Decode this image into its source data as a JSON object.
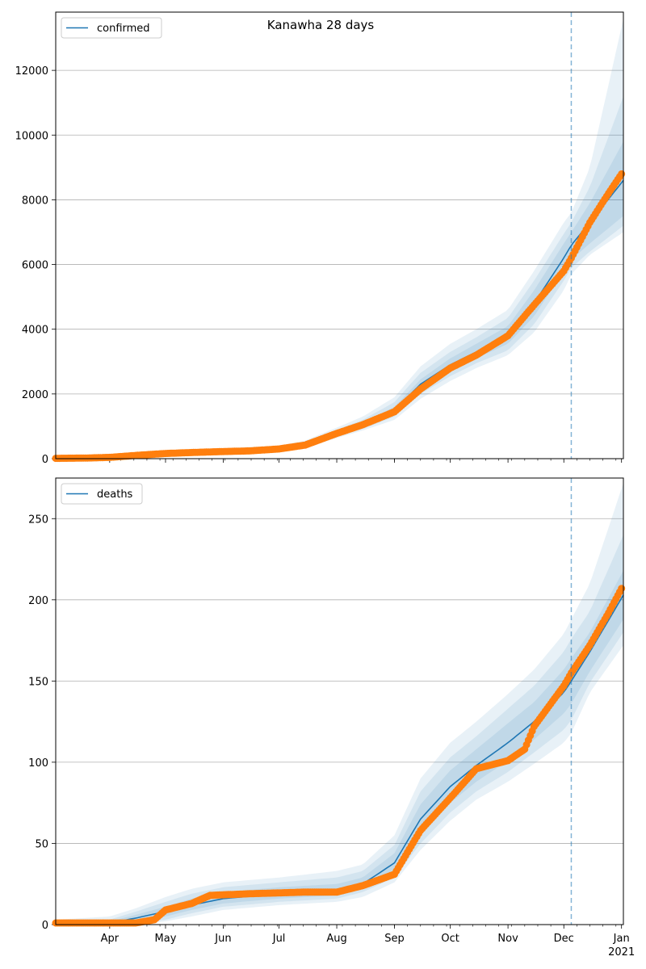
{
  "title": "Kanawha 28 days",
  "colors": {
    "model_line": "#1f77b4",
    "band": "#1f77b4",
    "observed": "#ff7f0e",
    "grid": "#b0b0b0",
    "forecast_line": "#1f77b4"
  },
  "chart_data": [
    {
      "type": "line",
      "title": "Kanawha 28 days",
      "xlabel": "",
      "ylabel": "",
      "x_range": [
        "2020-03-03",
        "2021-01-02"
      ],
      "ylim": [
        0,
        13800
      ],
      "yticks": [
        0,
        2000,
        4000,
        6000,
        8000,
        10000,
        12000
      ],
      "grid": "horizontal",
      "legend_position": "top-left",
      "forecast_start": "2020-12-05",
      "series": [
        {
          "name": "confirmed",
          "role": "model",
          "x": [
            "2020-03-03",
            "2020-04-01",
            "2020-05-01",
            "2020-06-01",
            "2020-07-01",
            "2020-07-15",
            "2020-08-01",
            "2020-08-15",
            "2020-09-01",
            "2020-09-15",
            "2020-10-01",
            "2020-10-15",
            "2020-11-01",
            "2020-11-15",
            "2020-12-01",
            "2020-12-05",
            "2020-12-15",
            "2021-01-02"
          ],
          "values": [
            0,
            50,
            170,
            230,
            300,
            420,
            780,
            1050,
            1500,
            2300,
            2900,
            3300,
            3800,
            4800,
            6200,
            6600,
            7300,
            8600
          ],
          "bands": [
            {
              "lower": [
                0,
                40,
                140,
                200,
                260,
                380,
                720,
                980,
                1400,
                2150,
                2700,
                3100,
                3550,
                4400,
                5800,
                6150,
                6650,
                7500
              ],
              "upper": [
                10,
                60,
                200,
                260,
                340,
                470,
                840,
                1120,
                1600,
                2450,
                3100,
                3550,
                4100,
                5200,
                6650,
                7000,
                7900,
                9800
              ]
            },
            {
              "lower": [
                0,
                30,
                120,
                180,
                240,
                350,
                680,
                920,
                1300,
                2000,
                2550,
                2950,
                3350,
                4150,
                5500,
                5900,
                6400,
                7200
              ],
              "upper": [
                20,
                80,
                230,
                290,
                370,
                510,
                900,
                1200,
                1750,
                2650,
                3300,
                3750,
                4350,
                5500,
                6950,
                7300,
                8400,
                11200
              ]
            },
            {
              "lower": [
                0,
                20,
                100,
                160,
                220,
                320,
                640,
                870,
                1200,
                1850,
                2400,
                2800,
                3200,
                3900,
                5200,
                5700,
                6300,
                7000
              ],
              "upper": [
                30,
                100,
                260,
                320,
                400,
                560,
                960,
                1300,
                1900,
                2850,
                3550,
                4000,
                4600,
                5800,
                7300,
                7600,
                9000,
                13600
              ]
            }
          ]
        },
        {
          "name": "",
          "role": "observed",
          "x": [
            "2020-03-03",
            "2020-03-20",
            "2020-04-01",
            "2020-04-15",
            "2020-05-01",
            "2020-05-15",
            "2020-06-01",
            "2020-06-15",
            "2020-07-01",
            "2020-07-15",
            "2020-08-01",
            "2020-08-15",
            "2020-09-01",
            "2020-09-15",
            "2020-10-01",
            "2020-10-15",
            "2020-11-01",
            "2020-11-15",
            "2020-12-01",
            "2020-12-05",
            "2020-12-15",
            "2020-12-25",
            "2021-01-01"
          ],
          "values": [
            10,
            20,
            40,
            100,
            160,
            190,
            220,
            240,
            300,
            420,
            780,
            1050,
            1450,
            2150,
            2800,
            3200,
            3800,
            4750,
            5800,
            6200,
            7300,
            8200,
            8800
          ]
        }
      ]
    },
    {
      "type": "line",
      "title": "",
      "xlabel": "",
      "ylabel": "",
      "x_range": [
        "2020-03-03",
        "2021-01-02"
      ],
      "ylim": [
        0,
        275
      ],
      "yticks": [
        0,
        50,
        100,
        150,
        200,
        250
      ],
      "xticks": [
        "Apr",
        "May",
        "Jun",
        "Jul",
        "Aug",
        "Sep",
        "Oct",
        "Nov",
        "Dec",
        "Jan"
      ],
      "xtick_dates": [
        "2020-04-01",
        "2020-05-01",
        "2020-06-01",
        "2020-07-01",
        "2020-08-01",
        "2020-09-01",
        "2020-10-01",
        "2020-11-01",
        "2020-12-01",
        "2021-01-01"
      ],
      "year_label": "2021",
      "grid": "horizontal",
      "legend_position": "top-left",
      "forecast_start": "2020-12-05",
      "series": [
        {
          "name": "deaths",
          "role": "model",
          "x": [
            "2020-03-03",
            "2020-04-01",
            "2020-04-15",
            "2020-05-01",
            "2020-05-15",
            "2020-06-01",
            "2020-07-01",
            "2020-08-01",
            "2020-08-15",
            "2020-09-01",
            "2020-09-15",
            "2020-10-01",
            "2020-10-15",
            "2020-11-01",
            "2020-11-15",
            "2020-12-01",
            "2020-12-05",
            "2020-12-15",
            "2021-01-02"
          ],
          "values": [
            0,
            1,
            4,
            8,
            12,
            16,
            19,
            21,
            25,
            38,
            65,
            85,
            98,
            112,
            125,
            143,
            150,
            168,
            203
          ],
          "bands": [
            {
              "lower": [
                0,
                0,
                2,
                5,
                9,
                13,
                16,
                18,
                22,
                33,
                56,
                75,
                88,
                101,
                114,
                130,
                136,
                156,
                188
              ],
              "upper": [
                1,
                2,
                6,
                11,
                16,
                20,
                23,
                25,
                29,
                44,
                74,
                95,
                108,
                124,
                137,
                157,
                164,
                180,
                218
              ]
            },
            {
              "lower": [
                0,
                0,
                1,
                3,
                7,
                11,
                14,
                16,
                20,
                29,
                50,
                69,
                82,
                94,
                106,
                120,
                126,
                149,
                180
              ],
              "upper": [
                2,
                3,
                8,
                14,
                19,
                23,
                26,
                29,
                33,
                49,
                82,
                103,
                116,
                133,
                147,
                168,
                176,
                193,
                240
              ]
            },
            {
              "lower": [
                0,
                0,
                0,
                2,
                5,
                9,
                12,
                14,
                17,
                26,
                46,
                64,
                77,
                88,
                99,
                112,
                118,
                143,
                172
              ],
              "upper": [
                3,
                5,
                10,
                17,
                22,
                26,
                29,
                33,
                37,
                55,
                90,
                112,
                125,
                142,
                157,
                179,
                188,
                210,
                272
              ]
            }
          ]
        },
        {
          "name": "",
          "role": "observed",
          "x": [
            "2020-03-03",
            "2020-04-01",
            "2020-04-15",
            "2020-04-25",
            "2020-05-01",
            "2020-05-15",
            "2020-05-25",
            "2020-06-15",
            "2020-07-15",
            "2020-08-01",
            "2020-08-15",
            "2020-09-01",
            "2020-09-15",
            "2020-10-01",
            "2020-10-15",
            "2020-11-01",
            "2020-11-10",
            "2020-11-15",
            "2020-12-01",
            "2020-12-05",
            "2020-12-15",
            "2020-12-25",
            "2021-01-01"
          ],
          "values": [
            1,
            1,
            1,
            3,
            9,
            13,
            18,
            19,
            20,
            20,
            24,
            31,
            58,
            78,
            96,
            101,
            108,
            122,
            147,
            155,
            172,
            192,
            207
          ]
        }
      ]
    }
  ]
}
